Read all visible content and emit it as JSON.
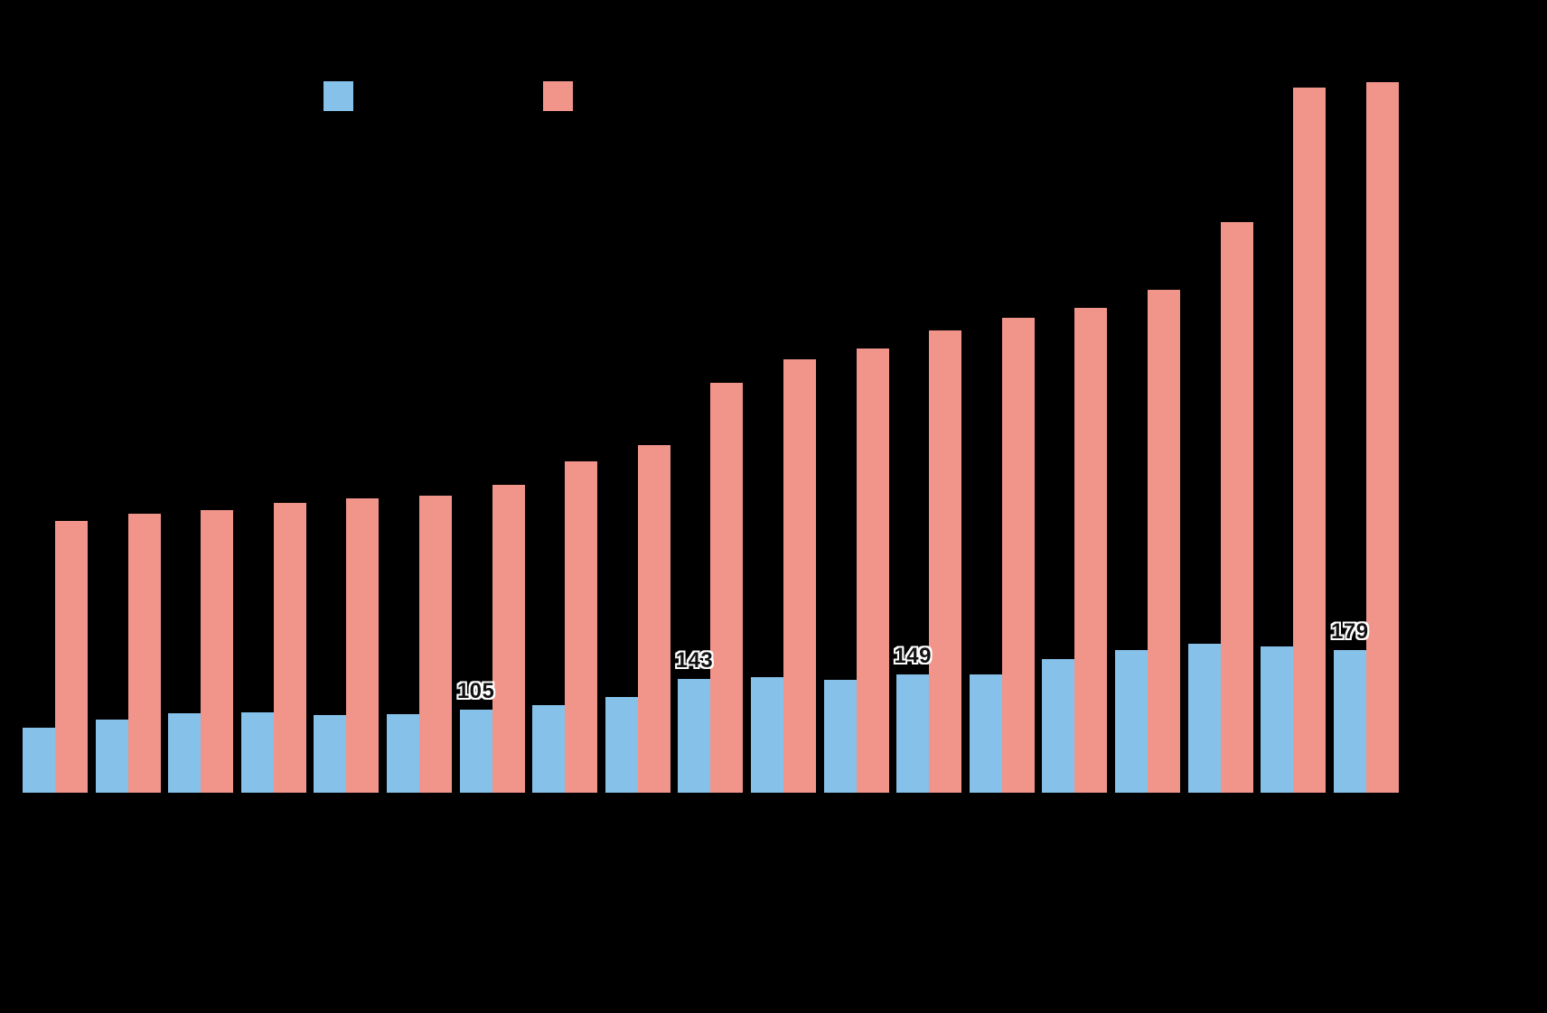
{
  "page": {
    "background_color": "#000000"
  },
  "legend": {
    "position": "top",
    "items": [
      {
        "name": "series-blue",
        "color": "#85C1E9",
        "label": ""
      },
      {
        "name": "series-red",
        "color": "#F1948A",
        "label": ""
      }
    ]
  },
  "chart_data": {
    "type": "bar",
    "title": "",
    "xlabel": "",
    "ylabel": "",
    "categories": [
      "",
      "",
      "",
      "",
      "",
      "",
      "",
      "",
      "",
      "",
      "",
      "",
      "",
      "",
      "",
      "",
      "",
      "",
      ""
    ],
    "series": [
      {
        "name": "blue",
        "color": "#85C1E9",
        "values": [
          82,
          92,
          100,
          101,
          98,
          99,
          105,
          110,
          120,
          143,
          146,
          142,
          149,
          149,
          168,
          180,
          187,
          184,
          179
        ]
      },
      {
        "name": "red",
        "color": "#F1948A",
        "values": [
          342,
          351,
          356,
          365,
          370,
          374,
          388,
          417,
          438,
          516,
          545,
          559,
          582,
          598,
          610,
          633,
          718,
          888,
          894
        ]
      }
    ],
    "data_labels": [
      {
        "series": 0,
        "index": 6,
        "text": "105"
      },
      {
        "series": 0,
        "index": 9,
        "text": "143"
      },
      {
        "series": 0,
        "index": 12,
        "text": "149"
      },
      {
        "series": 0,
        "index": 18,
        "text": "179"
      }
    ],
    "ylim": [
      0,
      900
    ],
    "grid": false,
    "legend_position": "top",
    "note": "Chart rendered on a black background; title, axis tick labels and legend text are black-on-black and not legible in the screenshot. Unlabeled bar values are estimated from pixel heights; labeled blue bars read 105, 143, 149 and 179."
  }
}
